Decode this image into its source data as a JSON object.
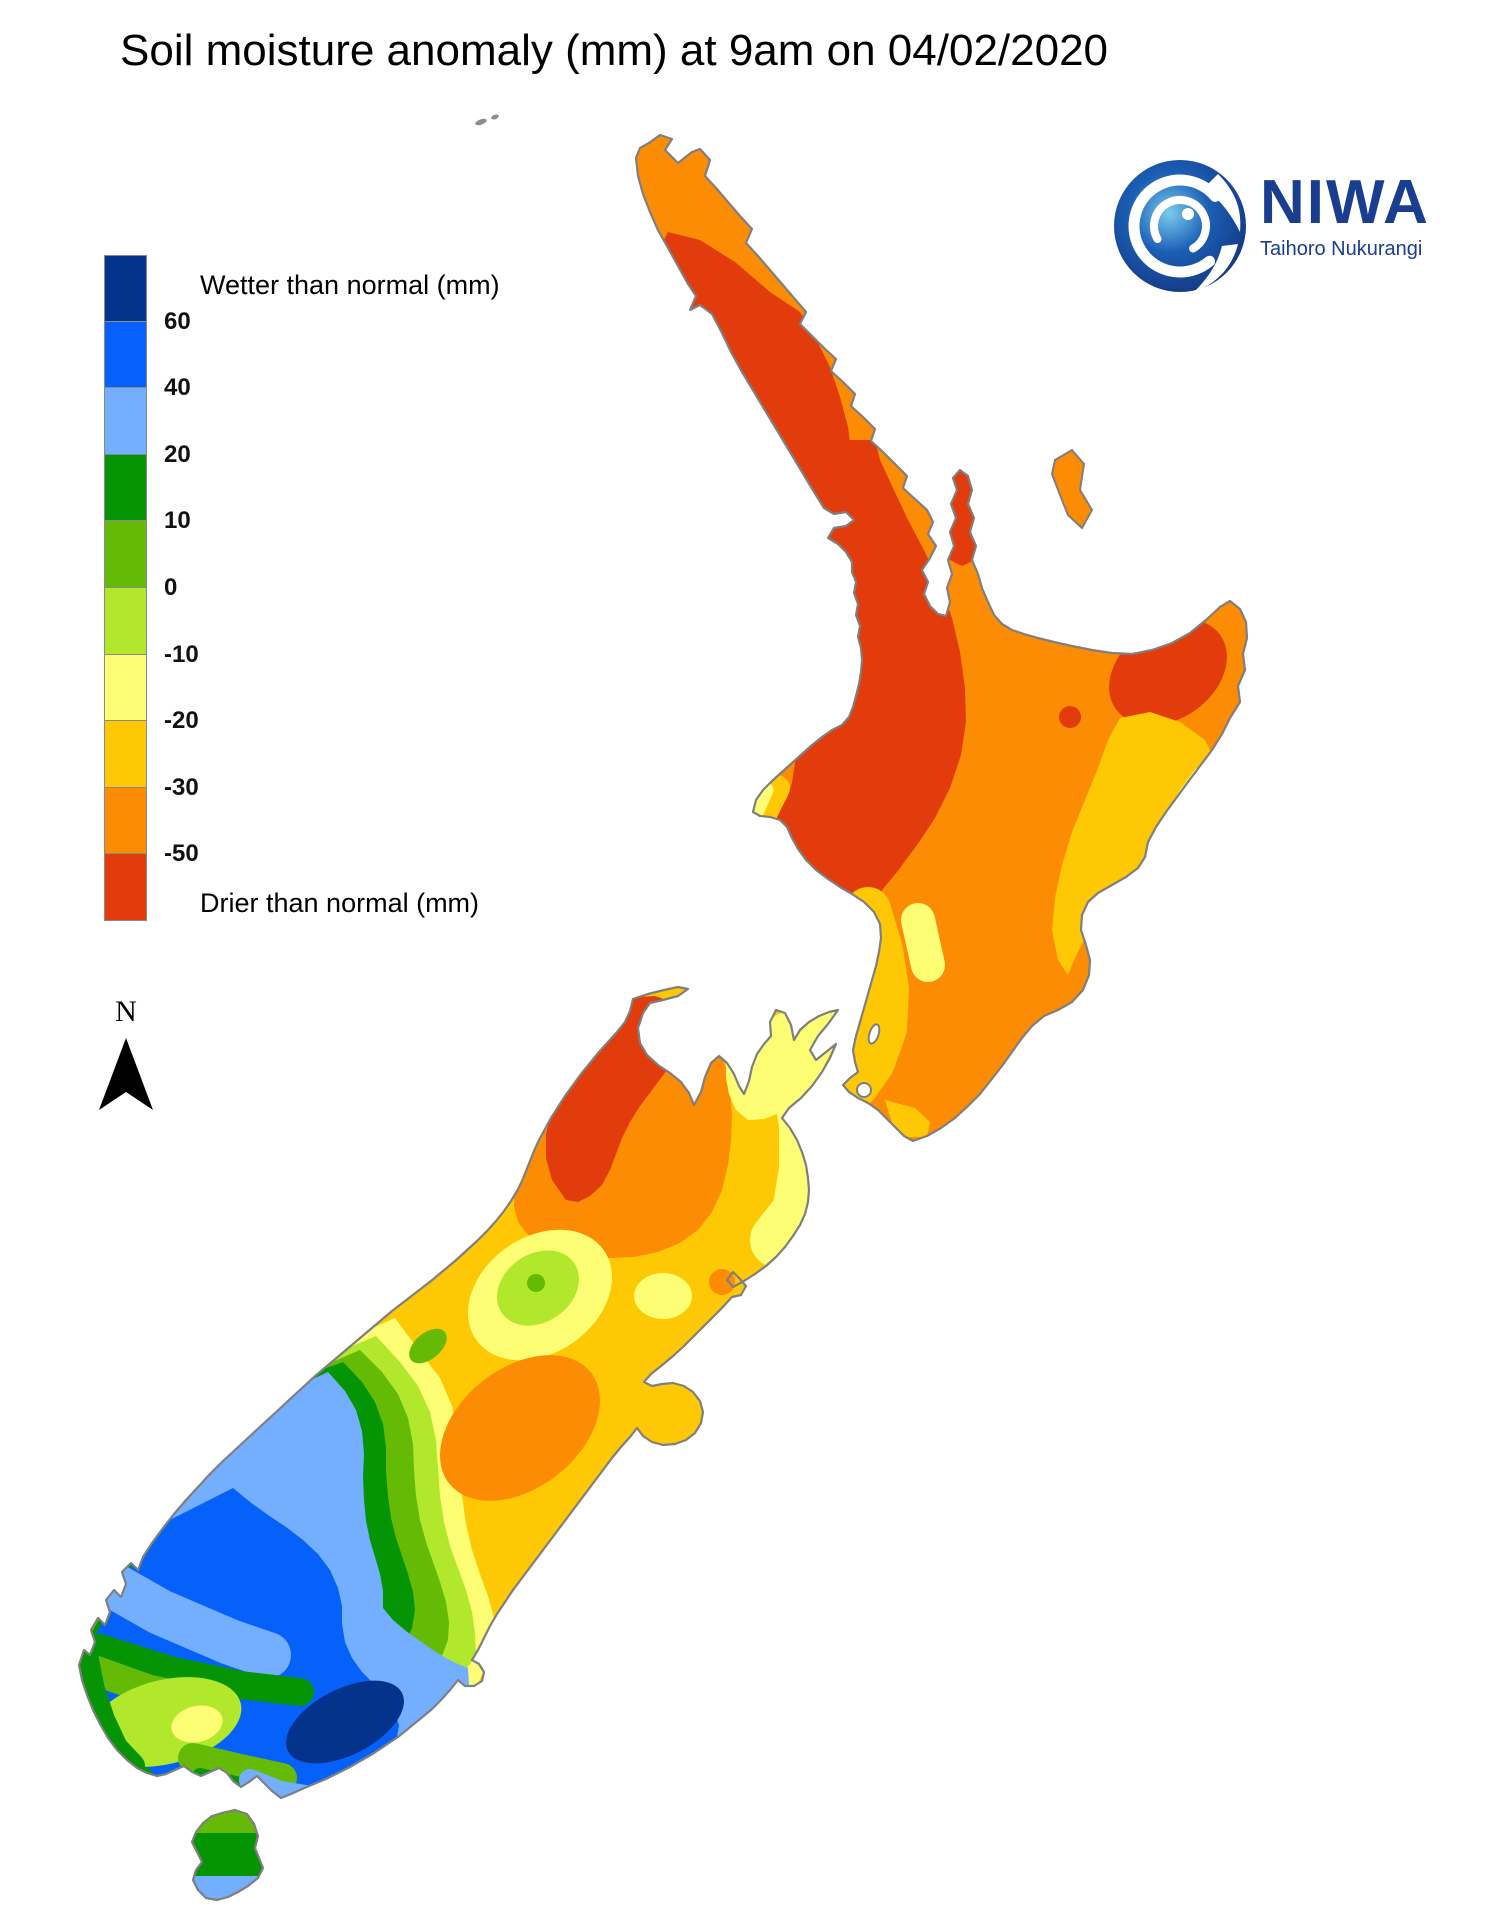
{
  "title": "Soil moisture anomaly (mm) at 9am on 04/02/2020",
  "legend": {
    "wetter_label": "Wetter than normal (mm)",
    "drier_label": "Drier than normal (mm)",
    "cells": [
      "#04338C",
      "#0561FA",
      "#74AFFF",
      "#049404",
      "#64BA04",
      "#B2E82C",
      "#FEFE74",
      "#FEC804",
      "#FC8C04",
      "#E23C0C"
    ],
    "boundaries": [
      "60",
      "40",
      "20",
      "10",
      "0",
      "-10",
      "-20",
      "-30",
      "-50"
    ]
  },
  "compass": {
    "label": "N"
  },
  "logo": {
    "brand": "NIWA",
    "subtitle": "Taihoro Nukurangi"
  },
  "palette": {
    "navy": "#04338C",
    "blue": "#0561FA",
    "lightblue": "#74AFFF",
    "darkgreen": "#049404",
    "midgreen": "#64BA04",
    "yellowgreen": "#B2E82C",
    "paleyellow": "#FEFE74",
    "gold": "#FEC804",
    "orange": "#FC8C04",
    "red": "#E23C0C",
    "coast": "#7F7F7F",
    "white": "#FFFFFF",
    "logo_navy": "#1A3E8F",
    "logo_light": "#2E9BD6",
    "black": "#000000"
  }
}
